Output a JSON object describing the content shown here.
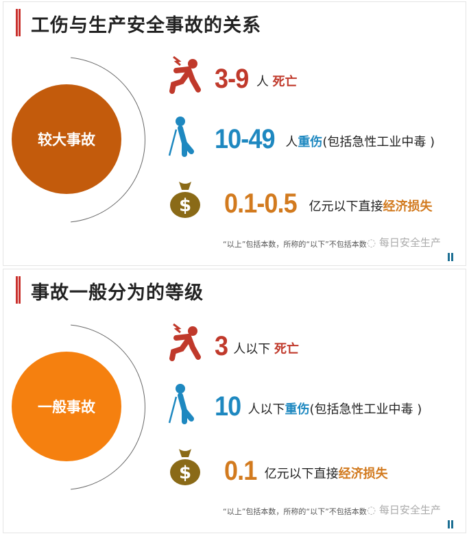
{
  "colors": {
    "red": "#c0392b",
    "blue": "#1e88c0",
    "orange": "#d27a1e",
    "bag": "#8a6a17",
    "circle1": "#c35b0c",
    "circle2": "#f5800f"
  },
  "panels": [
    {
      "title": "工伤与生产安全事故的关系",
      "circle": "较大事故",
      "rows": [
        {
          "icon": "injured-person-icon",
          "num": "3-9",
          "text": "人 ",
          "hl": "死亡",
          "rest": ""
        },
        {
          "icon": "crutch-person-icon",
          "num": "10-49",
          "text": "人",
          "hl": "重伤",
          "rest": "(包括急性工业中毒 )"
        },
        {
          "icon": "money-bag-icon",
          "num": "0.1-0.5",
          "text": "亿元以下直接",
          "hl": "经济损失",
          "rest": ""
        }
      ],
      "note": "“以上”包括本数，所称的“以下”不包括本数",
      "watermark": "每日安全生产"
    },
    {
      "title": "事故一般分为的等级",
      "circle": "一般事故",
      "rows": [
        {
          "icon": "injured-person-icon",
          "num": "3",
          "text": "人以下 ",
          "hl": "死亡",
          "rest": ""
        },
        {
          "icon": "crutch-person-icon",
          "num": "10",
          "text": "人以下",
          "hl": "重伤",
          "rest": "(包括急性工业中毒 )"
        },
        {
          "icon": "money-bag-icon",
          "num": "0.1",
          "text": "亿元以下直接",
          "hl": "经济损失",
          "rest": ""
        }
      ],
      "note": "“以上”包括本数，所称的“以下”不包括本数",
      "watermark": "每日安全生产"
    }
  ]
}
